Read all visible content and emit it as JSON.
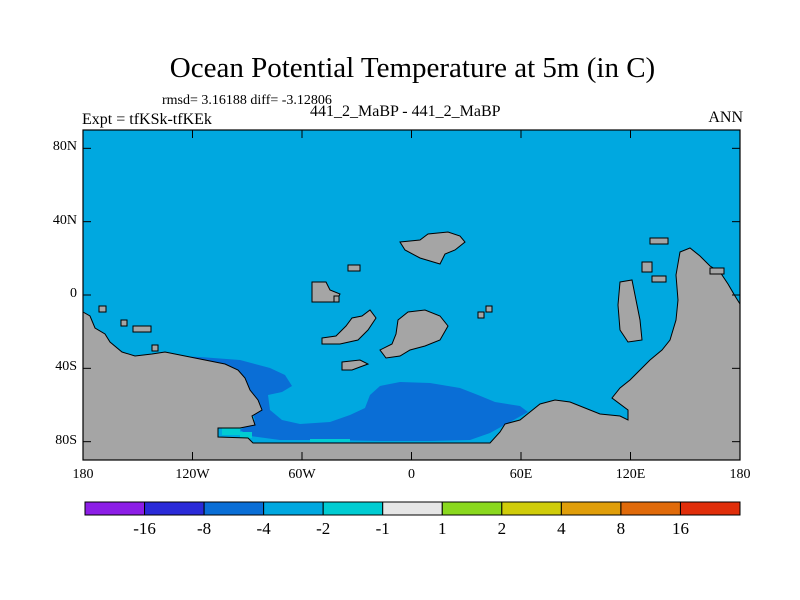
{
  "title": "Ocean Potential Temperature at 5m (in C)",
  "stats": "rmsd= 3.16188 diff= -3.12806",
  "center_label": "441_2_MaBP - 441_2_MaBP",
  "left_label": "Expt = tfKSk-tfKEk",
  "right_label": "ANN",
  "map": {
    "projection": "cylindrical equidistant",
    "lon_range": [
      -180,
      180
    ],
    "lat_range": [
      -90,
      90
    ],
    "ocean_color": "#00a8e0",
    "land_color": "#a5a5a5",
    "y_ticks": [
      {
        "lat": 80,
        "label": "80N"
      },
      {
        "lat": 40,
        "label": "40N"
      },
      {
        "lat": 0,
        "label": "0"
      },
      {
        "lat": -40,
        "label": "40S"
      },
      {
        "lat": -80,
        "label": "80S"
      }
    ],
    "x_ticks": [
      {
        "lon": -180,
        "label": "180"
      },
      {
        "lon": -120,
        "label": "120W"
      },
      {
        "lon": -60,
        "label": "60W"
      },
      {
        "lon": 0,
        "label": "0"
      },
      {
        "lon": 60,
        "label": "60E"
      },
      {
        "lon": 120,
        "label": "120E"
      },
      {
        "lon": 180,
        "label": "180"
      }
    ]
  },
  "colorbar": {
    "colors": [
      "#8c1ee6",
      "#2a2ad8",
      "#0a6ed6",
      "#00a8e0",
      "#00ccd2",
      "#e6e6e6",
      "#8ad81e",
      "#d0cc0a",
      "#e09e0a",
      "#e06a0a",
      "#e02e0a"
    ],
    "labels": [
      "-16",
      "-8",
      "-4",
      "-2",
      "-1",
      "1",
      "2",
      "4",
      "8",
      "16"
    ]
  }
}
